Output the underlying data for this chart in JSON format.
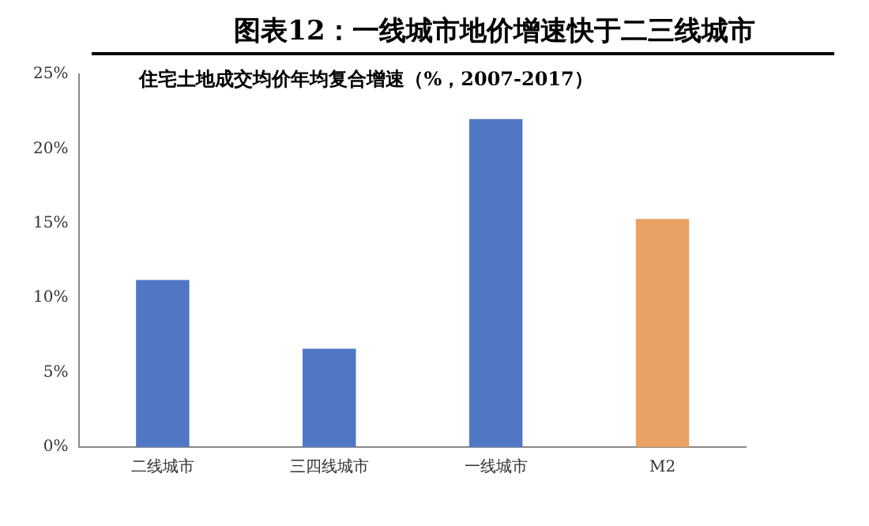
{
  "chart_data": {
    "type": "bar",
    "title": "图表12：一线城市地价增速快于二三线城市",
    "subtitle": "住宅土地成交均价年均复合增速（%，2007-2017）",
    "categories": [
      "二线城市",
      "三四线城市",
      "一线城市",
      "M2"
    ],
    "values": [
      11.2,
      6.6,
      22.0,
      15.3
    ],
    "colors": [
      "#4f77c4",
      "#4f77c4",
      "#4f77c4",
      "#e9a263"
    ],
    "ylim": [
      0,
      25
    ],
    "yticks": [
      {
        "value": 0,
        "label": "0%"
      },
      {
        "value": 5,
        "label": "5%"
      },
      {
        "value": 10,
        "label": "10%"
      },
      {
        "value": 15,
        "label": "15%"
      },
      {
        "value": 20,
        "label": "20%"
      },
      {
        "value": 25,
        "label": "25%"
      }
    ],
    "grid": false,
    "legend": false
  }
}
